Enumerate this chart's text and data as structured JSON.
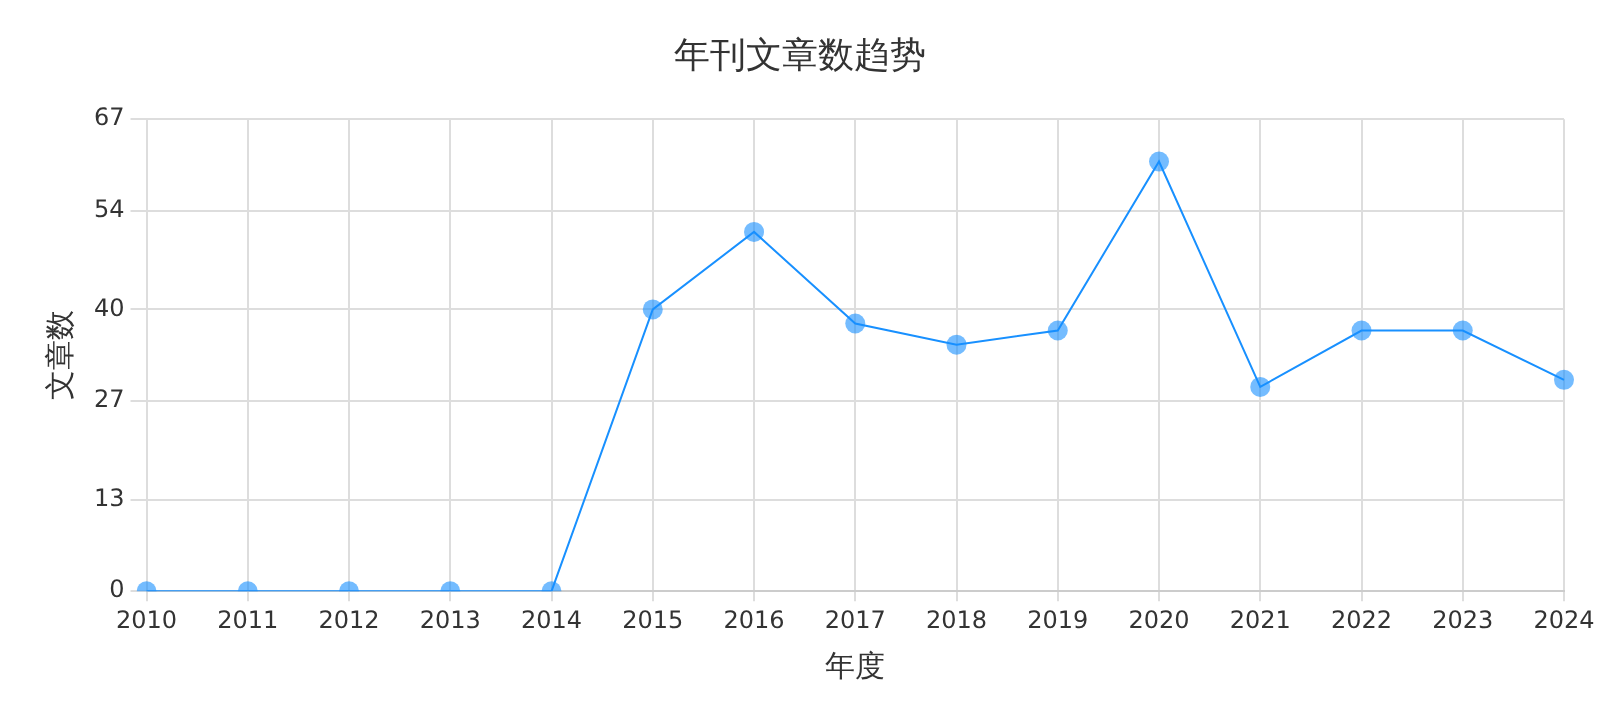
{
  "chart_data": {
    "type": "line",
    "title": "年刊文章数趋势",
    "xlabel": "年度",
    "ylabel": "文章数",
    "categories": [
      "2010",
      "2011",
      "2012",
      "2013",
      "2014",
      "2015",
      "2016",
      "2017",
      "2018",
      "2019",
      "2020",
      "2021",
      "2022",
      "2023",
      "2024"
    ],
    "series": [
      {
        "color": "#1890ff",
        "values": [
          0,
          0,
          0,
          0,
          0,
          40,
          51,
          38,
          35,
          37,
          61,
          29,
          37,
          37,
          30
        ]
      }
    ],
    "ylim": [
      0,
      67
    ],
    "yticks": [
      0,
      13,
      27,
      40,
      54,
      67
    ],
    "grid": true,
    "legend": false,
    "marker": "circle",
    "line_style": "solid"
  }
}
